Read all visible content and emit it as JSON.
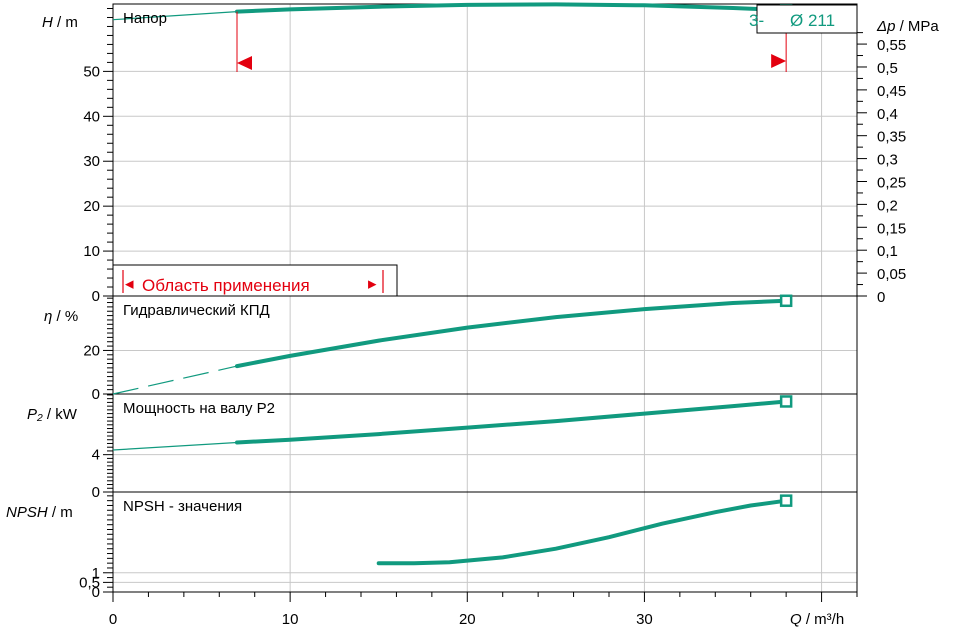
{
  "chart_data": {
    "type": "line",
    "x_axis": {
      "label_symbol": "Q",
      "label_unit": " / m³/h",
      "range": [
        0,
        42
      ],
      "ticks": [
        0,
        10,
        20,
        30
      ],
      "tick_labels": [
        "0",
        "10",
        "20",
        "30"
      ]
    },
    "panels": [
      {
        "id": "head",
        "title": "Напор",
        "y_symbol": "H",
        "y_unit": " / m",
        "y_range": [
          0,
          65
        ],
        "y_ticks": [
          0,
          10,
          20,
          30,
          40,
          50
        ],
        "y_tick_labels": [
          "0",
          "10",
          "20",
          "30",
          "40",
          "50"
        ],
        "right_axis": {
          "symbol": "Δp",
          "unit": " / MPa",
          "range": [
            0,
            0.6375
          ],
          "ticks": [
            0,
            0.05,
            0.1,
            0.15,
            0.2,
            0.25,
            0.3,
            0.35,
            0.4,
            0.45,
            0.5,
            0.55
          ],
          "tick_labels": [
            "0",
            "0,05",
            "0,1",
            "0,15",
            "0,2",
            "0,25",
            "0,3",
            "0,35",
            "0,4",
            "0,45",
            "0,5",
            "0,55"
          ]
        },
        "series": [
          {
            "x": [
              0,
              7,
              10,
              15,
              20,
              25,
              30,
              35,
              38
            ],
            "y": [
              61.5,
              63.3,
              63.8,
              64.4,
              64.8,
              64.9,
              64.7,
              64.1,
              63.6
            ],
            "thin_until_x": 7
          }
        ],
        "diameter_label": "Ø 211",
        "diameter_prefix": "3-",
        "range_label": "Область применения",
        "range_label_arrow_left": "◂",
        "range_label_arrow_right": "▸",
        "application_range": [
          7,
          38
        ]
      },
      {
        "id": "efficiency",
        "title": "Гидравлический КПД",
        "y_symbol": "η",
        "y_unit": " / %",
        "y_range": [
          0,
          45
        ],
        "y_ticks": [
          0,
          20
        ],
        "y_tick_labels": [
          "0",
          "20"
        ],
        "series": [
          {
            "x": [
              0,
              7,
              10,
              15,
              20,
              25,
              30,
              35,
              38
            ],
            "y": [
              0,
              12.8,
              17.5,
              24.5,
              30.5,
              35.3,
              39,
              41.8,
              42.8
            ],
            "thin_until_x": 7,
            "dashed_thin": true
          }
        ]
      },
      {
        "id": "power",
        "title": "Мощность на валу P2",
        "y_symbol": "P₂",
        "y_unit": " / kW",
        "y_range": [
          0,
          10.5
        ],
        "y_ticks": [
          0,
          4
        ],
        "y_tick_labels": [
          "0",
          "4"
        ],
        "series": [
          {
            "x": [
              0,
              7,
              10,
              15,
              20,
              25,
              30,
              35,
              38
            ],
            "y": [
              4.5,
              5.3,
              5.6,
              6.2,
              6.9,
              7.6,
              8.4,
              9.2,
              9.7
            ],
            "thin_until_x": 7
          }
        ]
      },
      {
        "id": "npsh",
        "title": "NPSH - значения",
        "y_symbol": "NPSH",
        "y_unit": "  / m",
        "y_range": [
          0,
          5.2
        ],
        "y_ticks": [
          0,
          0.5,
          1
        ],
        "y_tick_labels": [
          "0",
          "0,5",
          "1"
        ],
        "series": [
          {
            "x": [
              15,
              17,
              19,
              22,
              25,
              28,
              31,
              34,
              36,
              38
            ],
            "y": [
              1.5,
              1.5,
              1.55,
              1.8,
              2.25,
              2.85,
              3.55,
              4.15,
              4.5,
              4.75
            ],
            "thin_until_x": 15
          }
        ]
      }
    ],
    "grid": true,
    "colors": {
      "curve": "#119a7f",
      "annotation": "#e3000f",
      "grid": "#c8c8c8"
    }
  }
}
